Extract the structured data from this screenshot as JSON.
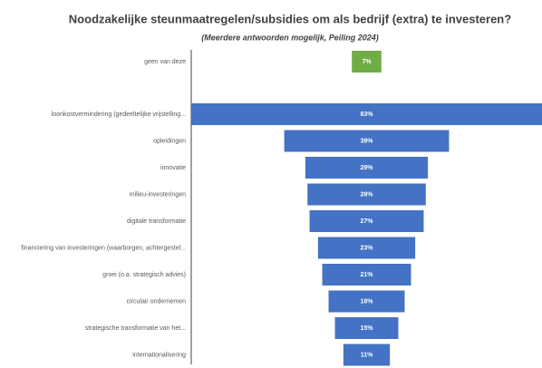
{
  "chart_data": {
    "type": "funnel",
    "title": "Noodzakelijke steunmaatregelen/subsidies om als bedrijf (extra) te investeren?",
    "subtitle": "(Meerdere antwoorden mogelijk, Peiling 2024)",
    "categories": [
      "geen van deze",
      "loonkostvermindering (gedeeltelijke vrijstelling...",
      "opleidingen",
      "innovatie",
      "milieu-investeringen",
      "digitale transformatie",
      "financiering van investeringen (waarborgen, achtergestel...",
      "groei (o.a. strategisch advies)",
      "circulair ondernemen",
      "strategische transformatie van het...",
      "internationalisering"
    ],
    "values": [
      7,
      83,
      39,
      29,
      28,
      27,
      23,
      21,
      18,
      15,
      11
    ],
    "value_labels": [
      "7%",
      "83%",
      "39%",
      "29%",
      "28%",
      "27%",
      "23%",
      "21%",
      "18%",
      "15%",
      "11%"
    ],
    "colors": [
      "#70ad47",
      "#4472c4",
      "#4472c4",
      "#4472c4",
      "#4472c4",
      "#4472c4",
      "#4472c4",
      "#4472c4",
      "#4472c4",
      "#4472c4",
      "#4472c4"
    ]
  }
}
